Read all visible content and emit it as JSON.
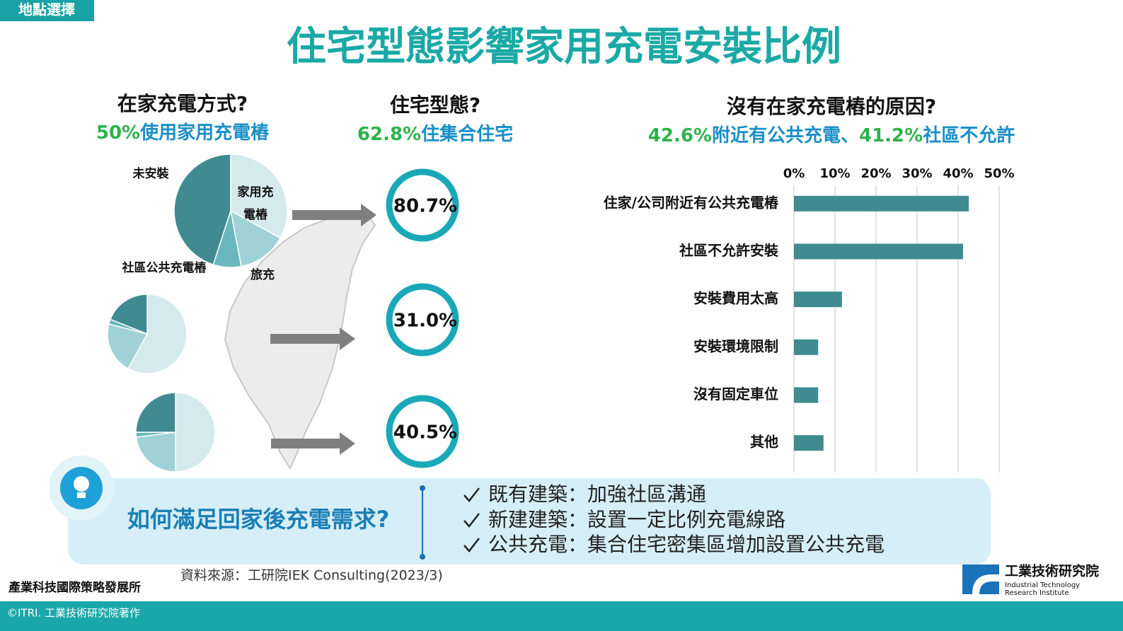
{
  "tag": "地點選擇",
  "title": "住宅型態影響家用充電安裝比例",
  "housing": {
    "title": "住宅型態?",
    "subtitle_parts": [
      "62.8%",
      "住集合住宅"
    ],
    "rates": [
      "80.7%",
      "31.0%",
      "40.5%"
    ]
  },
  "chart_data": [
    {
      "type": "pie",
      "title": "在家充電方式?",
      "subtitle_parts": [
        "50%",
        "使用家用充電樁"
      ],
      "categories": [
        "家用充電樁",
        "旅充",
        "社區公共充電樁",
        "未安裝"
      ],
      "values": [
        33,
        14,
        8,
        45
      ],
      "colors": [
        "#d4eaec",
        "#9fd1d6",
        "#6ab7bd",
        "#3f8b91"
      ]
    },
    {
      "type": "pie",
      "categories": [
        null,
        null,
        null,
        null
      ],
      "values": [
        58,
        21,
        2,
        19
      ],
      "colors": [
        "#d4eaec",
        "#9fd1d6",
        "#6ab7bd",
        "#3f8b91"
      ]
    },
    {
      "type": "pie",
      "categories": [
        null,
        null,
        null,
        null
      ],
      "values": [
        50,
        23,
        2,
        25
      ],
      "colors": [
        "#d4eaec",
        "#9fd1d6",
        "#6ab7bd",
        "#3f8b91"
      ]
    },
    {
      "type": "bar",
      "orientation": "horizontal",
      "title": "沒有在家充電樁的原因?",
      "subtitle_parts": [
        "42.6%",
        "附近有公共充電、",
        "41.2%",
        "社區不允許"
      ],
      "categories": [
        "住家/公司附近有公共充電樁",
        "社區不允許安裝",
        "安裝費用太高",
        "安裝環境限制",
        "沒有固定車位",
        "其他"
      ],
      "values": [
        42.6,
        41.2,
        11.7,
        5.9,
        5.9,
        7.2
      ],
      "color": "#3f8b91",
      "xlim": [
        0,
        50
      ],
      "xticks": [
        {
          "value": 0,
          "label": "0%"
        },
        {
          "value": 10,
          "label": "10%"
        },
        {
          "value": 20,
          "label": "20%"
        },
        {
          "value": 30,
          "label": "30%"
        },
        {
          "value": 40,
          "label": "40%"
        },
        {
          "value": 50,
          "label": "50%"
        }
      ],
      "grid": true
    }
  ],
  "solution": {
    "question": "如何滿足回家後充電需求?",
    "items": [
      "既有建築：加強社區溝通",
      "新建建築：設置一定比例充電線路",
      "公共充電：集合住宅密集區增加設置公共充電"
    ]
  },
  "source": "資料來源：工研院IEK Consulting(2023/3)",
  "org": "產業科技國際策略發展所",
  "copyright": "©ITRI. 工業技術研究院著作",
  "logo": {
    "name": "工業技術研究院",
    "english": [
      "Industrial Technology",
      "Research Institute"
    ]
  }
}
